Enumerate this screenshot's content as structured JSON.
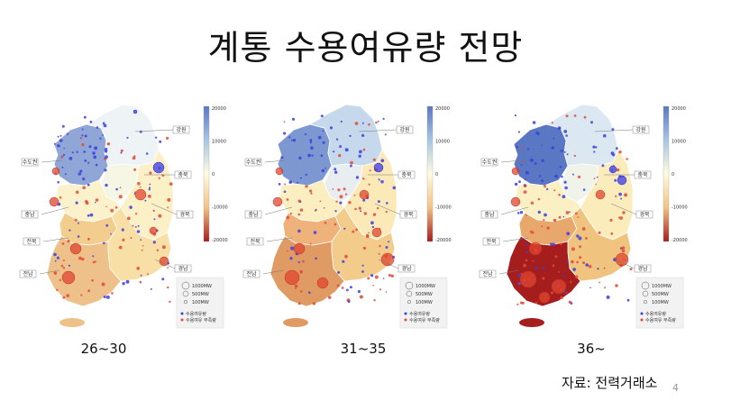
{
  "title": "계통 수용여유량 전망",
  "source": "자료: 전력거래소",
  "page_number": "4",
  "colorbar": {
    "ticks": [
      "20000",
      "10000",
      "0",
      "-10000",
      "-20000"
    ],
    "colors": [
      "#5a77c4",
      "#a8c6e2",
      "#fffbe0",
      "#f1c384",
      "#a51d1d"
    ]
  },
  "region_labels": [
    "강원",
    "수도권",
    "충북",
    "충남",
    "경북",
    "전북",
    "경남",
    "전남"
  ],
  "legend": {
    "sizes": [
      "1000MW",
      "500MW",
      "100MW"
    ],
    "types": [
      "수용여유량",
      "수용여유 부족량"
    ]
  },
  "panels": [
    {
      "period": "26~30",
      "region_colors": {
        "capital": "#8fa6d6",
        "gangwon": "#eef4f6",
        "chungbuk": "#f6f6e4",
        "gyeongbuk": "#fbf0c6",
        "chungnam": "#fbf2cc",
        "jeonbuk": "#f3cd8e",
        "gyeongnam": "#f8dfa6",
        "jeonnam": "#eec08a"
      }
    },
    {
      "period": "31~35",
      "region_colors": {
        "capital": "#7d98d0",
        "gangwon": "#c6d9ec",
        "chungbuk": "#e8eef0",
        "gyeongbuk": "#fbeab8",
        "chungnam": "#fbefc2",
        "jeonbuk": "#eeb27a",
        "gyeongnam": "#f3cc8c",
        "jeonnam": "#e09a64"
      }
    },
    {
      "period": "36~",
      "region_colors": {
        "capital": "#5a77c4",
        "gangwon": "#dbe8f2",
        "chungbuk": "#f0f3ea",
        "gyeongbuk": "#fbecbc",
        "chungnam": "#fbf0c4",
        "jeonbuk": "#e8a86c",
        "gyeongnam": "#f0c47e",
        "jeonnam": "#a51d1d"
      }
    }
  ]
}
